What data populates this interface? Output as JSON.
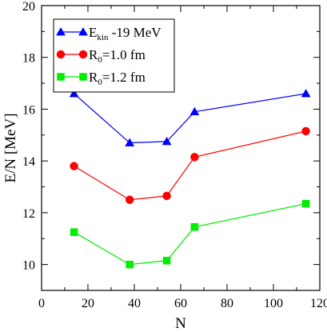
{
  "chart_data": {
    "type": "line",
    "xlabel": "N",
    "ylabel": "E/N [MeV]",
    "xlim": [
      0,
      120
    ],
    "ylim": [
      9,
      20
    ],
    "x_ticks": [
      0,
      20,
      40,
      60,
      80,
      100,
      120
    ],
    "y_ticks": [
      10,
      12,
      14,
      16,
      18,
      20
    ],
    "grid": false,
    "legend_position": "top-left",
    "series": [
      {
        "name": "E_kin -19 MeV",
        "legend_main": "E",
        "legend_sub": "kin",
        "legend_rest": " -19 MeV",
        "color": "#0000ff",
        "marker": "triangle",
        "x": [
          14,
          38,
          54,
          66,
          114
        ],
        "y": [
          16.6,
          14.7,
          14.75,
          15.9,
          16.6
        ]
      },
      {
        "name": "R_0=1.0 fm",
        "legend_main": "R",
        "legend_sub": "0",
        "legend_rest": "=1.0 fm",
        "color": "#ff0000",
        "marker": "circle",
        "x": [
          14,
          38,
          54,
          66,
          114
        ],
        "y": [
          13.8,
          12.5,
          12.65,
          14.15,
          15.15
        ]
      },
      {
        "name": "R_0=1.2 fm",
        "legend_main": "R",
        "legend_sub": "0",
        "legend_rest": "=1.2 fm",
        "color": "#00ee00",
        "marker": "square",
        "x": [
          14,
          38,
          54,
          66,
          114
        ],
        "y": [
          11.25,
          10.0,
          10.15,
          11.45,
          12.35
        ]
      }
    ]
  }
}
